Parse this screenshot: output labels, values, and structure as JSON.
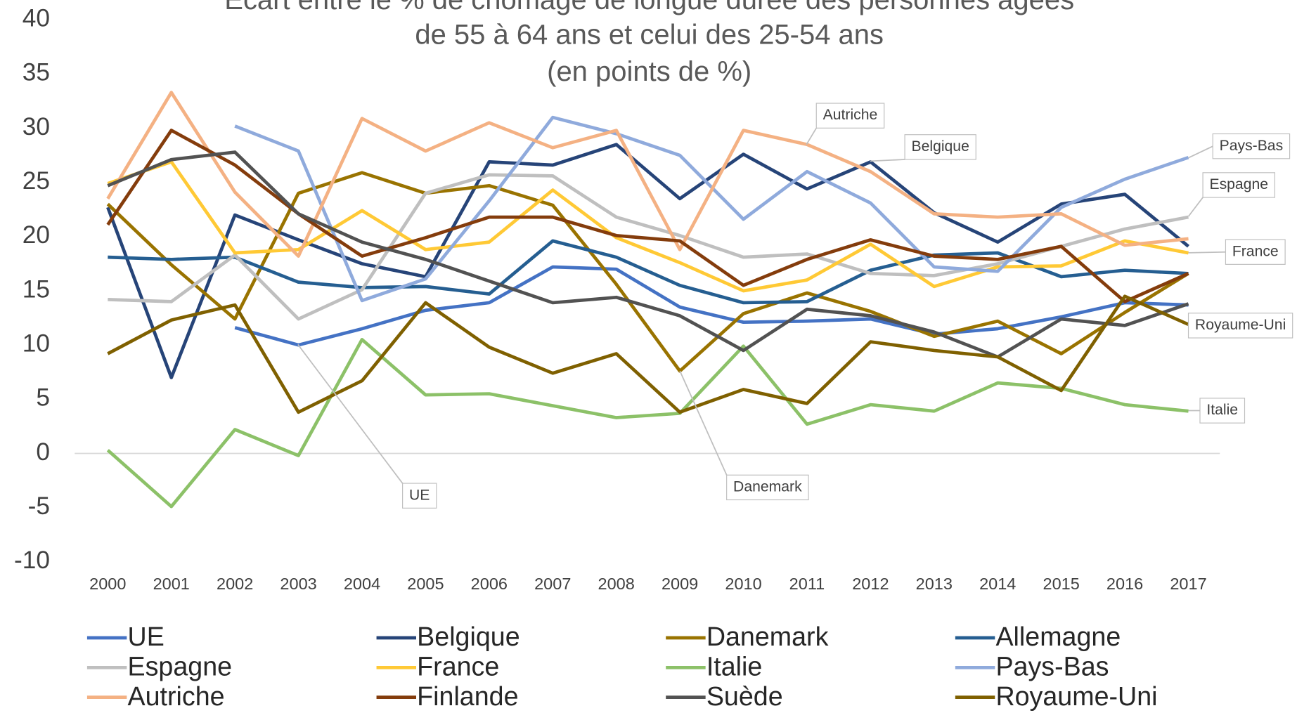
{
  "chart_data": {
    "type": "line",
    "title": [
      "Écart entre le % de chômage de longue durée des personnes âgées",
      "de 55 à 64 ans et celui des 25-54 ans",
      "(en points de %)"
    ],
    "categories": [
      "2000",
      "2001",
      "2002",
      "2003",
      "2004",
      "2005",
      "2006",
      "2007",
      "2008",
      "2009",
      "2010",
      "2011",
      "2012",
      "2013",
      "2014",
      "2015",
      "2016",
      "2017"
    ],
    "ylim": [
      -10,
      40
    ],
    "yticks": [
      -10,
      -5,
      0,
      5,
      10,
      15,
      20,
      25,
      30,
      35,
      40
    ],
    "series": [
      {
        "name": "UE",
        "color": "#4472c4",
        "values": [
          null,
          null,
          11.6,
          10.0,
          11.5,
          13.2,
          13.9,
          17.2,
          17.0,
          13.5,
          12.1,
          12.2,
          12.4,
          11.0,
          11.5,
          12.6,
          13.9,
          13.7
        ]
      },
      {
        "name": "Belgique",
        "color": "#264478",
        "values": [
          22.7,
          7.0,
          22.0,
          19.7,
          17.5,
          16.3,
          26.9,
          26.6,
          28.5,
          23.5,
          27.6,
          24.4,
          26.9,
          22.2,
          19.5,
          23.0,
          23.9,
          19.1
        ]
      },
      {
        "name": "Danemark",
        "color": "#997300",
        "values": [
          23.0,
          17.4,
          12.4,
          24.0,
          25.9,
          24.0,
          24.7,
          22.9,
          15.6,
          7.6,
          12.9,
          14.8,
          13.1,
          10.8,
          12.2,
          9.2,
          13.0,
          16.6
        ]
      },
      {
        "name": "Allemagne",
        "color": "#255e91",
        "values": [
          18.1,
          17.9,
          18.1,
          15.8,
          15.3,
          15.4,
          14.7,
          19.6,
          18.1,
          15.5,
          13.9,
          14.0,
          16.9,
          18.3,
          18.5,
          16.3,
          16.9,
          16.6
        ]
      },
      {
        "name": "Espagne",
        "color": "#bfbfbf",
        "values": [
          14.2,
          14.0,
          18.3,
          12.4,
          15.1,
          24.0,
          25.7,
          25.6,
          21.8,
          20.1,
          18.1,
          18.4,
          16.6,
          16.4,
          17.5,
          19.1,
          20.7,
          21.8
        ]
      },
      {
        "name": "France",
        "color": "#ffc935",
        "values": [
          24.9,
          26.9,
          18.5,
          18.8,
          22.4,
          18.8,
          19.5,
          24.3,
          19.9,
          17.6,
          15.0,
          16.0,
          19.3,
          15.4,
          17.2,
          17.3,
          19.6,
          18.5
        ]
      },
      {
        "name": "Italie",
        "color": "#8cc168",
        "values": [
          0.3,
          -4.9,
          2.2,
          -0.2,
          10.5,
          5.4,
          5.5,
          4.4,
          3.3,
          3.7,
          9.9,
          2.7,
          4.5,
          3.9,
          6.5,
          6.0,
          4.5,
          3.9
        ]
      },
      {
        "name": "Pays-Bas",
        "color": "#8faadc",
        "values": [
          null,
          null,
          30.2,
          27.9,
          14.1,
          16.1,
          23.3,
          31.0,
          29.5,
          27.5,
          21.6,
          26.0,
          23.1,
          17.2,
          16.8,
          22.7,
          25.3,
          27.3
        ]
      },
      {
        "name": "Autriche",
        "color": "#f4b183",
        "values": [
          23.5,
          33.3,
          24.1,
          18.2,
          30.9,
          27.9,
          30.5,
          28.2,
          29.8,
          18.8,
          29.8,
          28.5,
          26.0,
          22.1,
          21.8,
          22.1,
          19.2,
          19.8
        ]
      },
      {
        "name": "Finlande",
        "color": "#843c0c",
        "values": [
          21.1,
          29.8,
          26.6,
          22.1,
          18.2,
          19.9,
          21.8,
          21.8,
          20.1,
          19.6,
          15.5,
          17.9,
          19.7,
          18.2,
          17.9,
          19.1,
          14.0,
          16.6
        ]
      },
      {
        "name": "Suède",
        "color": "#525252",
        "values": [
          24.7,
          27.1,
          27.8,
          22.1,
          19.5,
          17.9,
          15.9,
          13.9,
          14.4,
          12.7,
          9.5,
          13.3,
          12.7,
          11.2,
          8.9,
          12.4,
          11.8,
          13.8
        ]
      },
      {
        "name": "Royaume-Uni",
        "color": "#7f6000",
        "values": [
          9.2,
          12.3,
          13.7,
          3.8,
          6.7,
          13.9,
          9.8,
          7.4,
          9.2,
          3.8,
          5.9,
          4.6,
          10.3,
          9.5,
          8.9,
          5.8,
          14.5,
          11.9
        ]
      }
    ],
    "annotations": [
      "Autriche",
      "Belgique",
      "Pays-Bas",
      "Espagne",
      "France",
      "Royaume-Uni",
      "Italie",
      "UE",
      "Danemark"
    ],
    "legend": "bottom"
  }
}
